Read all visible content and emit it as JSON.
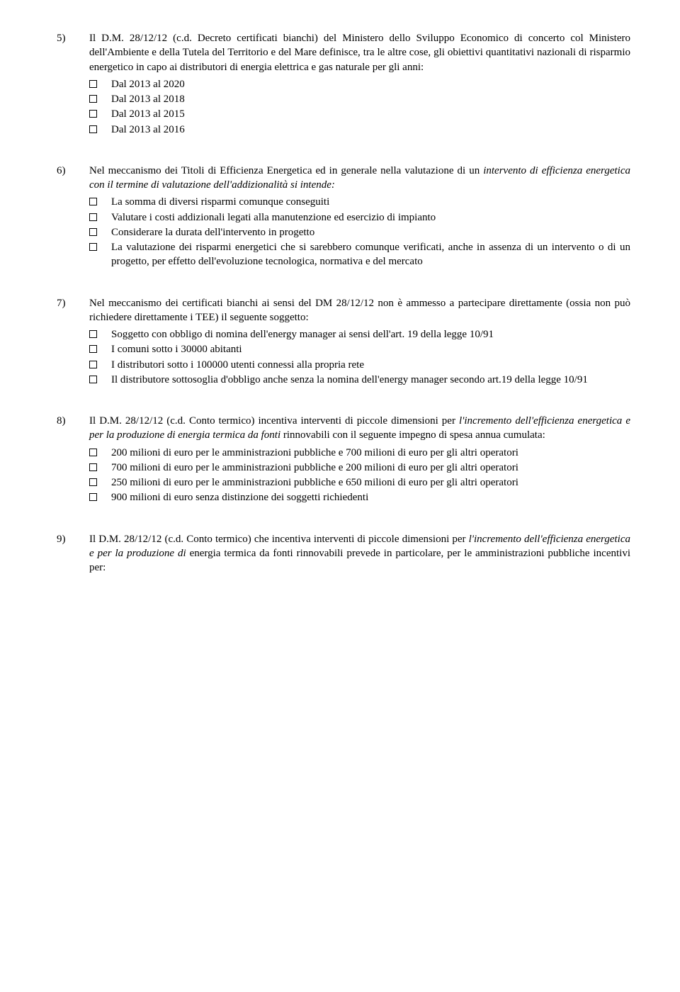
{
  "questions": [
    {
      "num": "5)",
      "text_parts": [
        {
          "t": "Il D.M. 28/12/12 (c.d. Decreto certificati bianchi) del Ministero dello Sviluppo Economico di concerto col Ministero dell'Ambiente e della Tutela del Territorio e del Mare definisce, tra le altre cose, gli obiettivi quantitativi nazionali di risparmio energetico in capo ai distributori di energia elettrica e gas naturale per gli anni:",
          "italic": false
        }
      ],
      "options": [
        "Dal 2013 al 2020",
        "Dal 2013 al 2018",
        "Dal 2013 al 2015",
        "Dal 2013 al 2016"
      ]
    },
    {
      "num": "6)",
      "text_parts": [
        {
          "t": "Nel meccanismo dei Titoli di Efficienza Energetica ed in generale nella valutazione di un ",
          "italic": false
        },
        {
          "t": "intervento di efficienza energetica con il termine di valutazione dell'addizionalità si intende:",
          "italic": true
        }
      ],
      "options": [
        "La somma di diversi risparmi comunque conseguiti",
        "Valutare i costi addizionali legati alla manutenzione ed esercizio di impianto",
        "Considerare la durata dell'intervento in progetto",
        "La valutazione dei risparmi energetici che si sarebbero comunque verificati, anche in assenza di un intervento o di un progetto, per effetto dell'evoluzione tecnologica, normativa e del mercato"
      ]
    },
    {
      "num": "7)",
      "text_parts": [
        {
          "t": "Nel meccanismo dei certificati bianchi ai sensi del DM 28/12/12 non è ammesso a partecipare direttamente (ossia non può richiedere direttamente i TEE) il seguente soggetto:",
          "italic": false
        }
      ],
      "options": [
        "Soggetto con obbligo di nomina dell'energy manager ai sensi dell'art. 19 della legge 10/91",
        "I comuni sotto i 30000 abitanti",
        "I distributori sotto i 100000 utenti connessi alla propria rete",
        "Il distributore sottosoglia d'obbligo anche senza la nomina dell'energy manager secondo art.19 della legge 10/91"
      ]
    },
    {
      "num": "8)",
      "text_parts": [
        {
          "t": "Il D.M. 28/12/12 (c.d. Conto termico) incentiva interventi di piccole dimensioni per ",
          "italic": false
        },
        {
          "t": "l'incremento dell'efficienza energetica e per la produzione di energia termica da fonti ",
          "italic": true
        },
        {
          "t": "rinnovabili con il seguente impegno di spesa annua cumulata:",
          "italic": false
        }
      ],
      "options": [
        "200 milioni di euro per le amministrazioni pubbliche e 700 milioni di euro per gli altri operatori",
        "700 milioni di euro per le amministrazioni pubbliche e 200 milioni di euro per gli altri operatori",
        "250 milioni di euro per le amministrazioni pubbliche e 650 milioni di euro per gli altri operatori",
        "900 milioni di euro senza distinzione dei soggetti richiedenti"
      ]
    },
    {
      "num": "9)",
      "text_parts": [
        {
          "t": "Il D.M. 28/12/12 (c.d. Conto termico) che incentiva interventi di piccole dimensioni per ",
          "italic": false
        },
        {
          "t": "l'incremento dell'efficienza energetica e per la produzione di ",
          "italic": true
        },
        {
          "t": "energia termica da fonti rinnovabili prevede in particolare, per le amministrazioni pubbliche incentivi per:",
          "italic": false
        }
      ],
      "options": []
    }
  ]
}
